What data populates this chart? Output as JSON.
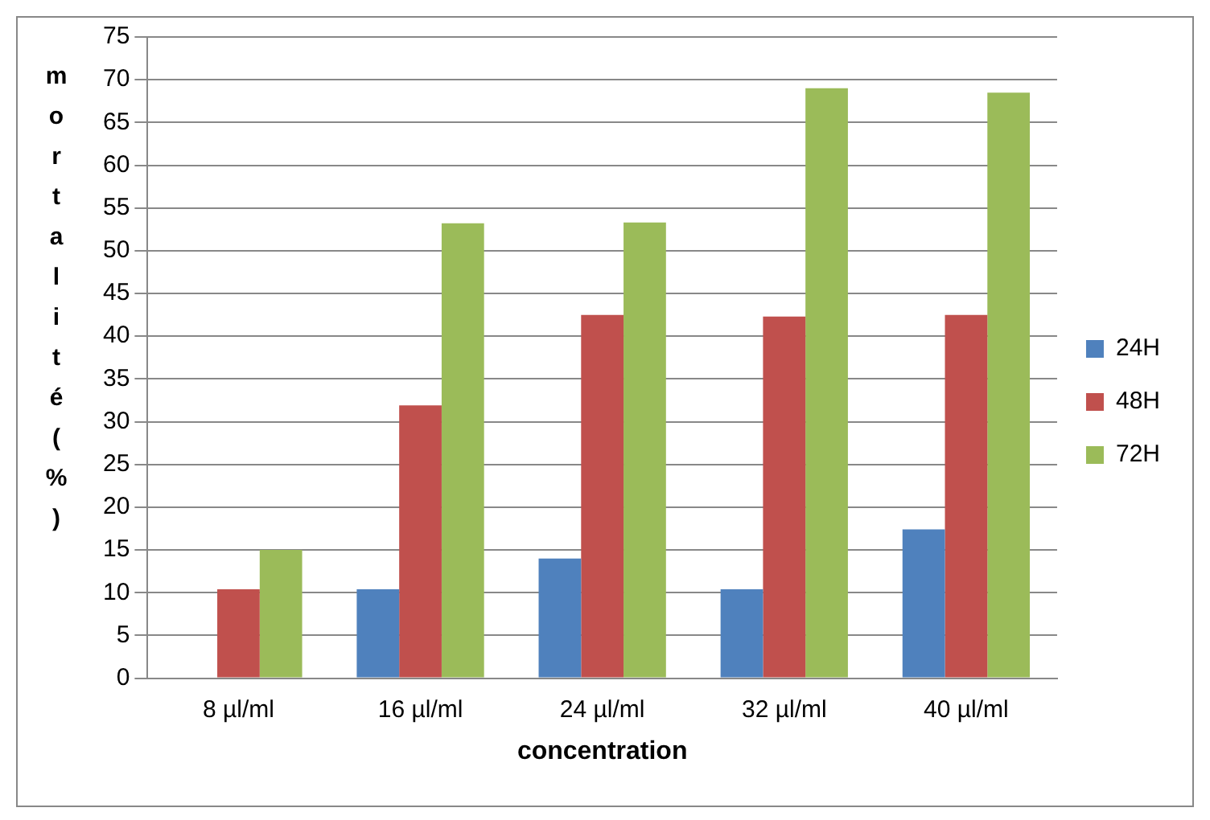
{
  "chart_data": {
    "type": "bar",
    "xlabel": "concentration",
    "ylabel": "mortalité (%)",
    "categories": [
      "8 µl/ml",
      "16 µl/ml",
      "24 µl/ml",
      "32 µl/ml",
      "40 µl/ml"
    ],
    "series": [
      {
        "name": "24H",
        "color": "#4f81bd",
        "values": [
          0,
          10.4,
          14,
          10.4,
          17.4
        ]
      },
      {
        "name": "48H",
        "color": "#c0504d",
        "values": [
          10.4,
          31.9,
          42.5,
          42.3,
          42.5
        ]
      },
      {
        "name": "72H",
        "color": "#9bbb59",
        "values": [
          15,
          53.2,
          53.3,
          69,
          68.5
        ]
      }
    ],
    "ylim": [
      0,
      75
    ],
    "yticks": [
      0,
      5,
      10,
      15,
      20,
      25,
      30,
      35,
      40,
      45,
      50,
      55,
      60,
      65,
      70,
      75
    ],
    "grid": "y",
    "legend": "right"
  }
}
